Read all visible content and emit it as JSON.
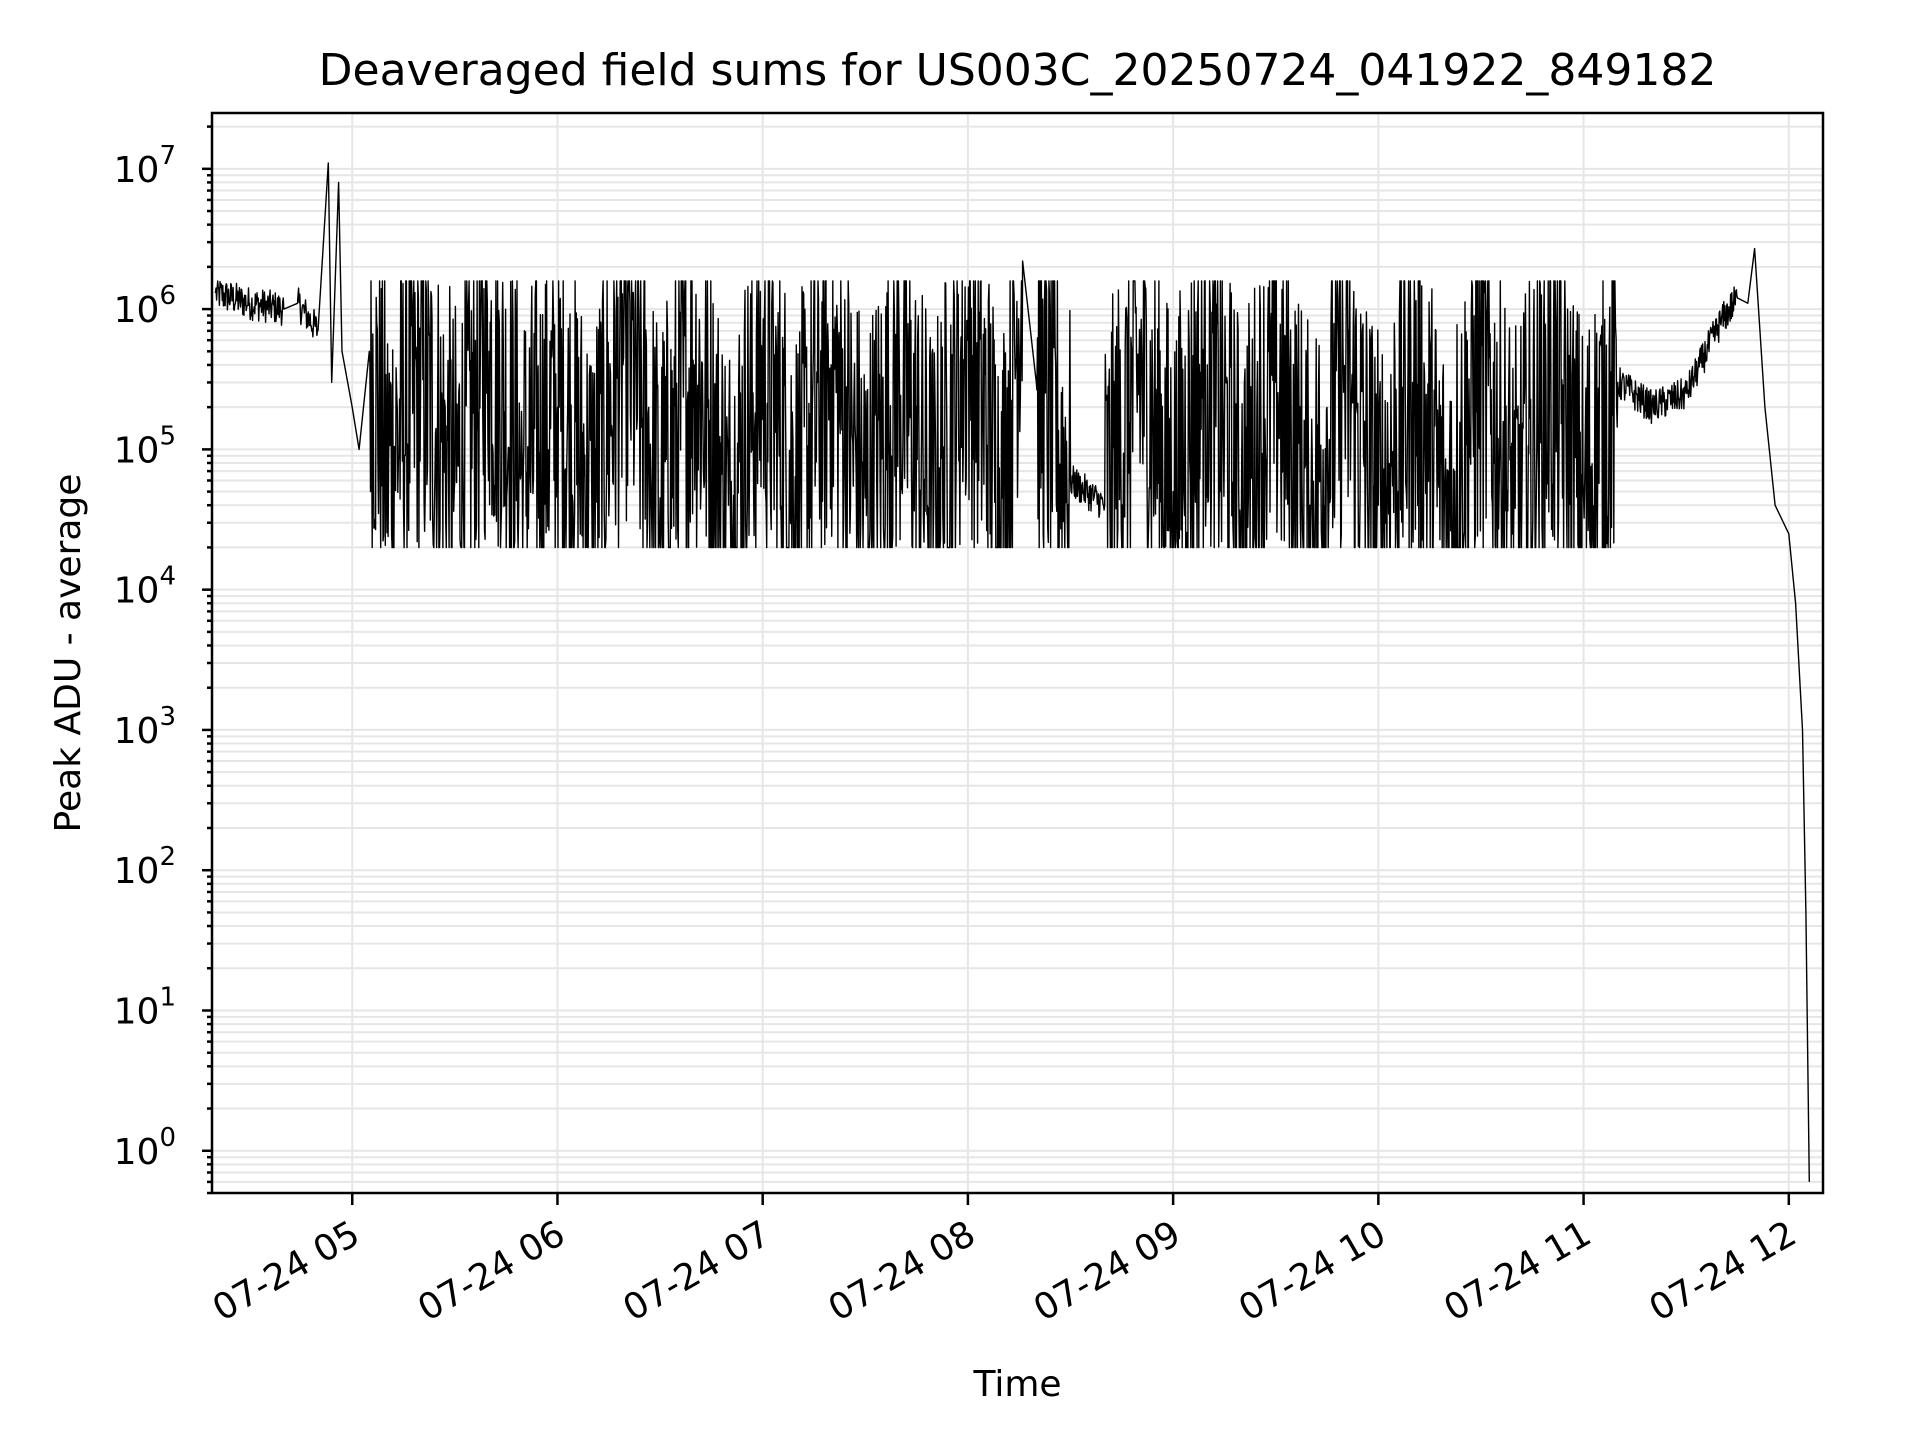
{
  "chart_data": {
    "type": "line",
    "title": "Deaveraged field sums for US003C_20250724_041922_849182",
    "xlabel": "Time",
    "ylabel": "Peak ADU - average",
    "x_scale": "time",
    "y_scale": "log",
    "xlim": [
      "07-24 04:19",
      "07-24 12:10"
    ],
    "ylim": [
      0.5,
      25000000
    ],
    "grid": true,
    "x_tick_labels": [
      "07-24 05",
      "07-24 06",
      "07-24 07",
      "07-24 08",
      "07-24 09",
      "07-24 10",
      "07-24 11",
      "07-24 12"
    ],
    "y_tick_labels": [
      {
        "base": "10",
        "exp": "0"
      },
      {
        "base": "10",
        "exp": "1"
      },
      {
        "base": "10",
        "exp": "2"
      },
      {
        "base": "10",
        "exp": "3"
      },
      {
        "base": "10",
        "exp": "4"
      },
      {
        "base": "10",
        "exp": "5"
      },
      {
        "base": "10",
        "exp": "6"
      },
      {
        "base": "10",
        "exp": "7"
      }
    ],
    "series": [
      {
        "color": "#000000",
        "x": [
          "07-24 04:20",
          "07-24 04:30",
          "07-24 04:40",
          "07-24 04:44",
          "07-24 04:50",
          "07-24 04:53",
          "07-24 04:54",
          "07-24 04:56",
          "07-24 04:57",
          "07-24 05:00",
          "07-24 05:02",
          "07-24 05:05",
          "07-24 05:10",
          "07-24 05:20",
          "07-24 05:30",
          "07-24 05:40",
          "07-24 05:50",
          "07-24 06:00",
          "07-24 06:10",
          "07-24 06:20",
          "07-24 06:30",
          "07-24 06:40",
          "07-24 06:50",
          "07-24 07:00",
          "07-24 07:10",
          "07-24 07:20",
          "07-24 07:30",
          "07-24 07:40",
          "07-24 07:50",
          "07-24 08:00",
          "07-24 08:10",
          "07-24 08:16",
          "07-24 08:20",
          "07-24 08:30",
          "07-24 08:40",
          "07-24 08:50",
          "07-24 09:00",
          "07-24 09:10",
          "07-24 09:20",
          "07-24 09:30",
          "07-24 09:40",
          "07-24 09:50",
          "07-24 10:00",
          "07-24 10:10",
          "07-24 10:20",
          "07-24 10:30",
          "07-24 10:40",
          "07-24 10:50",
          "07-24 11:00",
          "07-24 11:10",
          "07-24 11:20",
          "07-24 11:30",
          "07-24 11:40",
          "07-24 11:45",
          "07-24 11:48",
          "07-24 11:50",
          "07-24 11:53",
          "07-24 11:56",
          "07-24 12:00",
          "07-24 12:02",
          "07-24 12:04",
          "07-24 12:05",
          "07-24 12:06"
        ],
        "y": [
          1300000,
          1100000,
          1000000,
          1100000,
          700000,
          11000000,
          300000,
          8000000,
          500000,
          200000,
          100000,
          500000,
          80000,
          300000,
          60000,
          500000,
          70000,
          200000,
          50000,
          600000,
          45000,
          400000,
          40000,
          350000,
          55000,
          400000,
          45000,
          300000,
          40000,
          600000,
          45000,
          2200000,
          300000,
          60000,
          40000,
          350000,
          50000,
          400000,
          45000,
          300000,
          40000,
          350000,
          40000,
          300000,
          35000,
          350000,
          38000,
          300000,
          45000,
          300000,
          200000,
          250000,
          800000,
          1200000,
          1100000,
          2700000,
          200000,
          40000,
          25000,
          8000,
          1000,
          50,
          0.6
        ]
      }
    ]
  }
}
